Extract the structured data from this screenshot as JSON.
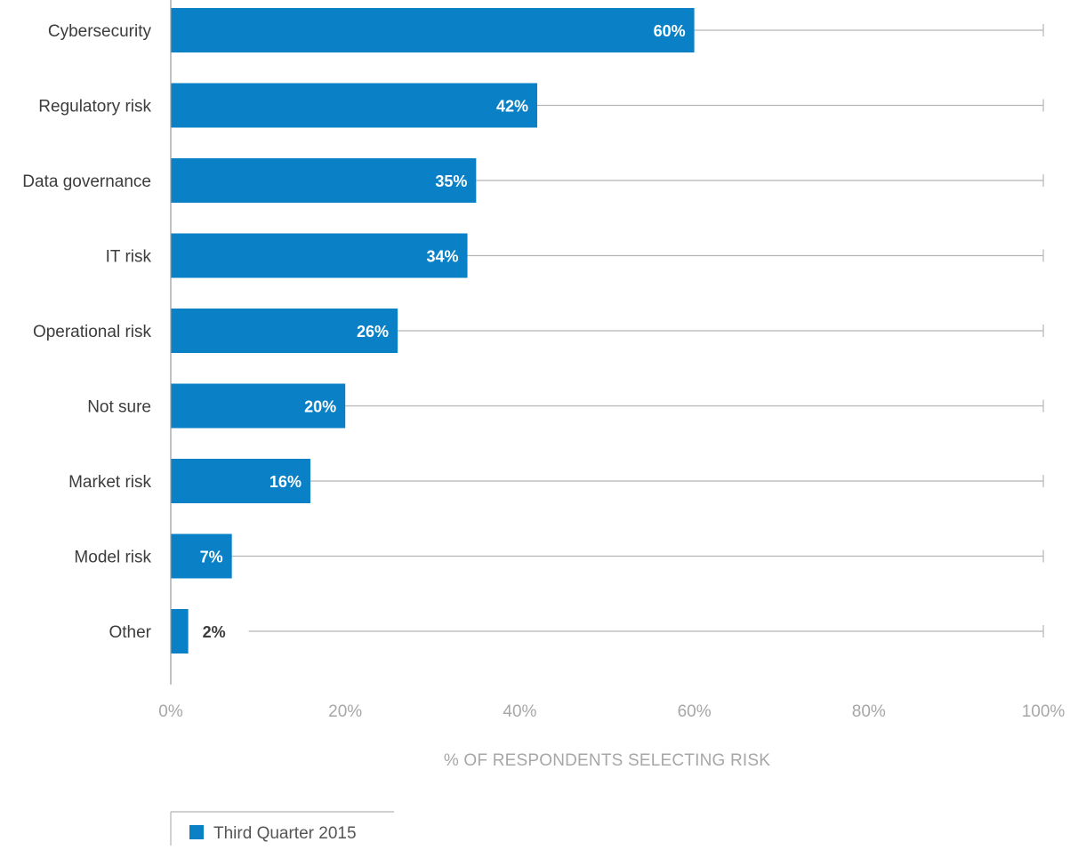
{
  "chart_data": {
    "type": "bar",
    "orientation": "horizontal",
    "categories": [
      "Cybersecurity",
      "Regulatory risk",
      "Data governance",
      "IT risk",
      "Operational risk",
      "Not sure",
      "Market risk",
      "Model risk",
      "Other"
    ],
    "series": [
      {
        "name": "Third Quarter 2015",
        "values": [
          60,
          42,
          35,
          34,
          26,
          20,
          16,
          7,
          2
        ],
        "data_labels": [
          "60%",
          "42%",
          "35%",
          "34%",
          "26%",
          "20%",
          "16%",
          "7%",
          "2%"
        ],
        "color": "#0a80c6"
      }
    ],
    "xlabel": "% OF RESPONDENTS SELECTING RISK",
    "xlim": [
      0,
      100
    ],
    "x_ticks": [
      0,
      20,
      40,
      60,
      80,
      100
    ],
    "x_tick_labels": [
      "0%",
      "20%",
      "40%",
      "60%",
      "80%",
      "100%"
    ],
    "grid": true,
    "legend_position": "bottom-left"
  },
  "colors": {
    "bar": "#0a80c6",
    "track": "#b5b5b5",
    "axis": "#9a9a9a"
  }
}
